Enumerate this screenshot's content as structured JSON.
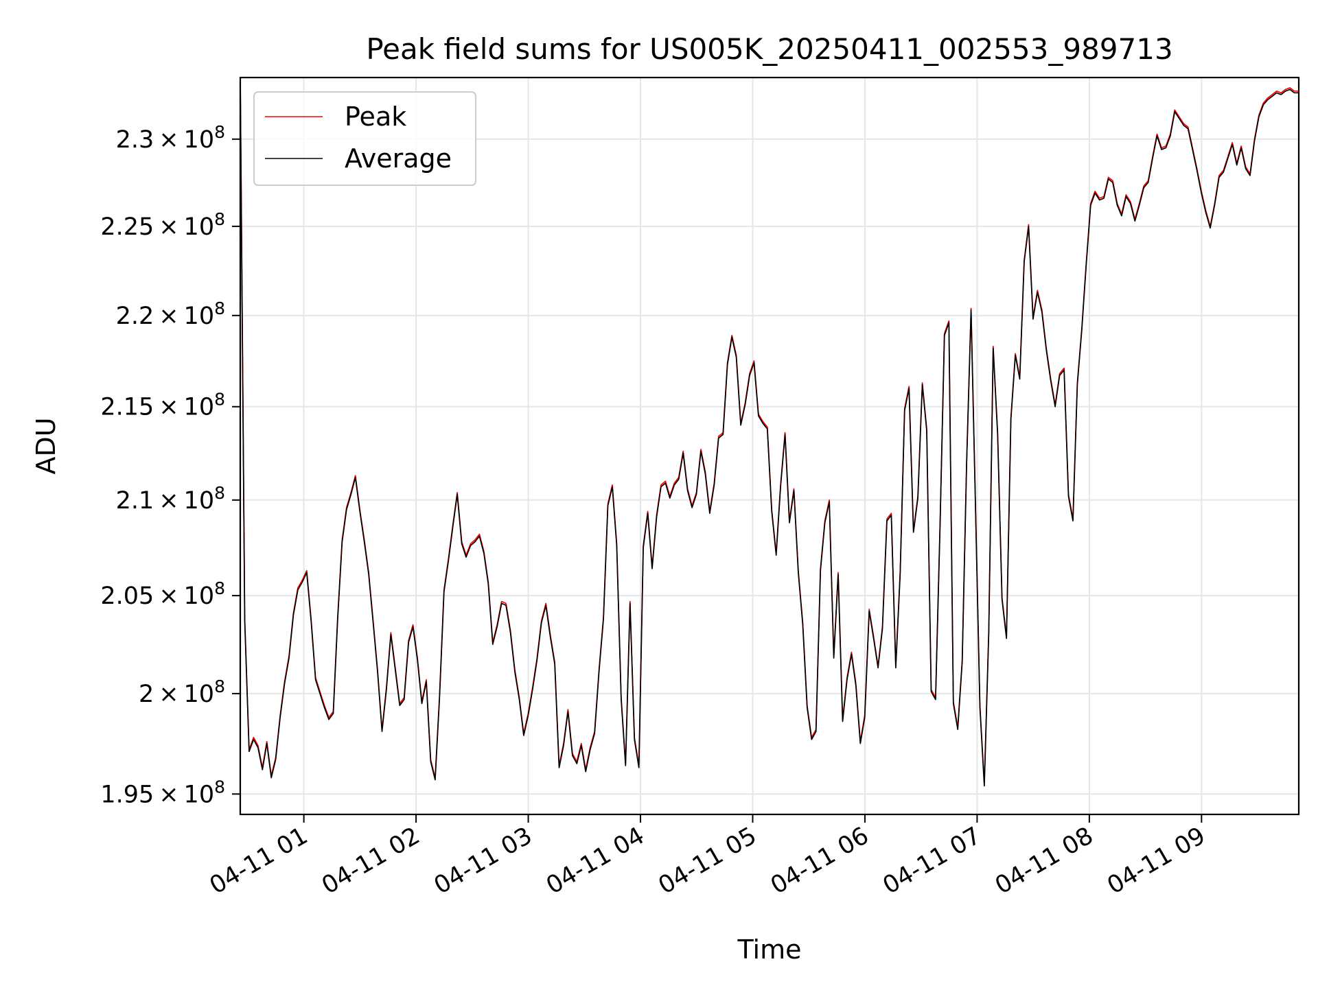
{
  "chart_data": {
    "type": "line",
    "title": "Peak field sums for US005K_20250411_002553_989713",
    "xlabel": "Time",
    "ylabel": "ADU",
    "x_start": "2025-04-11T00:26",
    "x_end": "2025-04-11T09:52",
    "xlim": [
      "2025-04-11T00:26",
      "2025-04-11T09:52"
    ],
    "ylim": [
      194000000,
      233600000
    ],
    "x_scale": "time",
    "y_scale": "log",
    "grid": true,
    "legend_position": "upper-left",
    "x_ticks": [
      {
        "value": "2025-04-11T01:00",
        "label": "04-11 01"
      },
      {
        "value": "2025-04-11T02:00",
        "label": "04-11 02"
      },
      {
        "value": "2025-04-11T03:00",
        "label": "04-11 03"
      },
      {
        "value": "2025-04-11T04:00",
        "label": "04-11 04"
      },
      {
        "value": "2025-04-11T05:00",
        "label": "04-11 05"
      },
      {
        "value": "2025-04-11T06:00",
        "label": "04-11 06"
      },
      {
        "value": "2025-04-11T07:00",
        "label": "04-11 07"
      },
      {
        "value": "2025-04-11T08:00",
        "label": "04-11 08"
      },
      {
        "value": "2025-04-11T09:00",
        "label": "04-11 09"
      }
    ],
    "y_ticks": [
      {
        "value": 195000000,
        "mantissa": "1.95"
      },
      {
        "value": 200000000,
        "mantissa": "2"
      },
      {
        "value": 205000000,
        "mantissa": "2.05"
      },
      {
        "value": 210000000,
        "mantissa": "2.1"
      },
      {
        "value": 215000000,
        "mantissa": "2.15"
      },
      {
        "value": 220000000,
        "mantissa": "2.2"
      },
      {
        "value": 225000000,
        "mantissa": "2.25"
      },
      {
        "value": 230000000,
        "mantissa": "2.3"
      }
    ],
    "y_tick_base": "10",
    "y_tick_exponent": "8",
    "y_tick_times": "×",
    "series": [
      {
        "name": "Peak",
        "color": "#ff0000",
        "values": [
          233600000,
          203800000,
          197200000,
          197800000,
          197400000,
          196300000,
          197600000,
          195900000,
          196800000,
          198900000,
          200600000,
          201900000,
          204100000,
          205400000,
          205800000,
          206300000,
          203800000,
          200800000,
          200100000,
          199400000,
          198800000,
          199100000,
          203900000,
          207900000,
          209600000,
          210400000,
          211300000,
          209500000,
          207900000,
          206200000,
          203700000,
          201200000,
          198200000,
          200300000,
          203100000,
          201300000,
          199500000,
          199800000,
          202700000,
          203500000,
          201800000,
          199600000,
          200700000,
          196700000,
          195800000,
          199900000,
          205300000,
          206900000,
          208700000,
          210400000,
          207800000,
          207100000,
          207700000,
          207900000,
          208200000,
          207300000,
          205700000,
          202600000,
          203500000,
          204700000,
          204600000,
          203200000,
          201200000,
          199800000,
          198000000,
          199000000,
          200300000,
          201800000,
          203700000,
          204600000,
          203000000,
          201600000,
          196400000,
          197500000,
          199200000,
          197000000,
          196600000,
          197500000,
          196200000,
          197300000,
          198100000,
          201200000,
          203900000,
          209800000,
          210800000,
          207700000,
          199800000,
          196500000,
          204700000,
          197800000,
          196400000,
          207600000,
          209400000,
          206500000,
          209200000,
          210800000,
          211000000,
          210200000,
          210900000,
          211200000,
          212600000,
          210600000,
          209700000,
          210400000,
          212700000,
          211500000,
          209400000,
          210900000,
          213400000,
          213600000,
          217400000,
          218900000,
          217800000,
          214100000,
          215200000,
          216800000,
          217500000,
          214600000,
          214200000,
          213900000,
          209500000,
          207200000,
          210800000,
          213600000,
          208900000,
          210600000,
          206300000,
          203600000,
          199400000,
          197800000,
          198200000,
          206400000,
          208900000,
          210000000,
          201900000,
          206200000,
          198700000,
          200800000,
          202100000,
          200500000,
          197600000,
          198900000,
          204300000,
          202900000,
          201400000,
          203400000,
          209000000,
          209300000,
          201400000,
          206200000,
          214900000,
          216100000,
          208400000,
          210200000,
          216300000,
          213800000,
          200200000,
          199800000,
          208700000,
          219000000,
          219700000,
          199600000,
          198300000,
          201700000,
          212000000,
          220400000,
          209800000,
          199400000,
          195500000,
          203200000,
          218300000,
          213600000,
          204900000,
          202900000,
          214400000,
          217900000,
          216600000,
          223100000,
          225100000,
          219900000,
          221400000,
          220300000,
          218200000,
          216500000,
          215100000,
          216800000,
          217100000,
          210300000,
          209000000,
          216300000,
          219300000,
          222900000,
          226300000,
          227000000,
          226600000,
          226700000,
          227800000,
          227600000,
          226300000,
          225700000,
          226800000,
          226400000,
          225400000,
          226300000,
          227300000,
          227600000,
          229000000,
          230300000,
          229500000,
          229600000,
          230300000,
          231700000,
          231300000,
          230900000,
          230700000,
          229500000,
          228300000,
          227000000,
          225900000,
          225000000,
          226300000,
          227900000,
          228200000,
          229000000,
          229800000,
          228600000,
          229600000,
          228400000,
          228000000,
          230000000,
          231400000,
          232100000,
          232400000,
          232600000,
          232800000,
          232700000,
          232900000,
          233000000,
          232800000,
          232800000
        ]
      },
      {
        "name": "Average",
        "color": "#000000",
        "values": [
          233600000,
          203700000,
          197100000,
          197700000,
          197300000,
          196200000,
          197500000,
          195800000,
          196700000,
          198800000,
          200500000,
          201800000,
          204000000,
          205300000,
          205700000,
          206200000,
          203700000,
          200700000,
          200000000,
          199300000,
          198700000,
          199000000,
          203800000,
          207800000,
          209500000,
          210300000,
          211200000,
          209400000,
          207800000,
          206100000,
          203600000,
          201100000,
          198100000,
          200200000,
          203000000,
          201200000,
          199400000,
          199700000,
          202600000,
          203400000,
          201700000,
          199500000,
          200600000,
          196600000,
          195700000,
          199800000,
          205200000,
          206800000,
          208600000,
          210300000,
          207700000,
          207000000,
          207600000,
          207800000,
          208100000,
          207200000,
          205600000,
          202500000,
          203400000,
          204600000,
          204500000,
          203100000,
          201100000,
          199700000,
          197900000,
          198900000,
          200200000,
          201700000,
          203600000,
          204500000,
          202900000,
          201500000,
          196300000,
          197400000,
          199100000,
          196900000,
          196500000,
          197400000,
          196100000,
          197200000,
          198000000,
          201100000,
          203800000,
          209700000,
          210700000,
          207600000,
          199700000,
          196400000,
          204600000,
          197700000,
          196300000,
          207500000,
          209300000,
          206400000,
          209100000,
          210700000,
          210900000,
          210100000,
          210800000,
          211100000,
          212500000,
          210500000,
          209600000,
          210300000,
          212600000,
          211400000,
          209300000,
          210800000,
          213300000,
          213500000,
          217300000,
          218800000,
          217700000,
          214000000,
          215100000,
          216700000,
          217400000,
          214500000,
          214100000,
          213800000,
          209400000,
          207100000,
          210700000,
          213500000,
          208800000,
          210500000,
          206200000,
          203500000,
          199300000,
          197700000,
          198100000,
          206300000,
          208800000,
          209900000,
          201800000,
          206100000,
          198600000,
          200700000,
          202000000,
          200400000,
          197500000,
          198800000,
          204200000,
          202800000,
          201300000,
          203300000,
          208900000,
          209200000,
          201300000,
          206100000,
          214800000,
          216000000,
          208300000,
          210100000,
          216200000,
          213700000,
          200100000,
          199700000,
          208600000,
          218900000,
          219600000,
          199500000,
          198200000,
          201600000,
          211900000,
          220300000,
          209700000,
          199300000,
          195400000,
          203100000,
          218200000,
          213500000,
          204800000,
          202800000,
          214300000,
          217800000,
          216500000,
          223000000,
          225000000,
          219800000,
          221300000,
          220200000,
          218100000,
          216400000,
          215000000,
          216700000,
          217000000,
          210200000,
          208900000,
          216200000,
          219200000,
          222800000,
          226200000,
          226900000,
          226500000,
          226600000,
          227700000,
          227500000,
          226200000,
          225600000,
          226700000,
          226300000,
          225300000,
          226200000,
          227200000,
          227500000,
          228900000,
          230200000,
          229400000,
          229500000,
          230200000,
          231600000,
          231200000,
          230800000,
          230600000,
          229400000,
          228200000,
          226900000,
          225800000,
          224900000,
          226200000,
          227800000,
          228100000,
          228900000,
          229700000,
          228500000,
          229500000,
          228300000,
          227900000,
          229900000,
          231300000,
          232000000,
          232300000,
          232500000,
          232700000,
          232600000,
          232800000,
          232900000,
          232700000,
          232700000
        ]
      }
    ]
  }
}
